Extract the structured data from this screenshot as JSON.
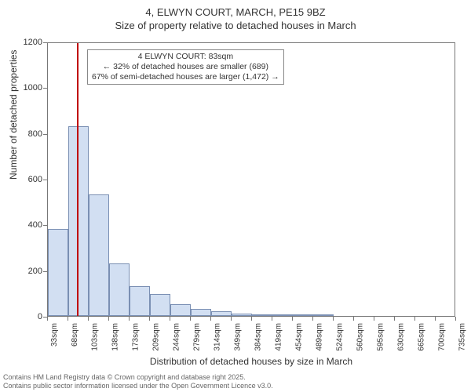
{
  "title_main": "4, ELWYN COURT, MARCH, PE15 9BZ",
  "title_sub": "Size of property relative to detached houses in March",
  "y_label": "Number of detached properties",
  "x_label": "Distribution of detached houses by size in March",
  "chart": {
    "type": "histogram",
    "background_color": "#ffffff",
    "bar_fill": "rgba(173,197,231,0.55)",
    "bar_border": "#7a8fb3",
    "border_color": "#777777",
    "marker_color": "#c00000",
    "ylim": [
      0,
      1200
    ],
    "ytick_step": 200,
    "y_ticks": [
      0,
      200,
      400,
      600,
      800,
      1000,
      1200
    ],
    "x_labels": [
      "33sqm",
      "68sqm",
      "103sqm",
      "138sqm",
      "173sqm",
      "209sqm",
      "244sqm",
      "279sqm",
      "314sqm",
      "349sqm",
      "384sqm",
      "419sqm",
      "454sqm",
      "489sqm",
      "524sqm",
      "560sqm",
      "595sqm",
      "630sqm",
      "665sqm",
      "700sqm",
      "735sqm"
    ],
    "bars": [
      380,
      830,
      530,
      230,
      130,
      95,
      50,
      30,
      20,
      12,
      8,
      5,
      3,
      2,
      0,
      0,
      0,
      0,
      0,
      0
    ],
    "marker_value_sqm": 83,
    "label_fontsize": 12,
    "tick_fontsize": 11
  },
  "annotation": {
    "line1": "4 ELWYN COURT: 83sqm",
    "line2": "← 32% of detached houses are smaller (689)",
    "line3": "67% of semi-detached houses are larger (1,472) →"
  },
  "footer": {
    "line1": "Contains HM Land Registry data © Crown copyright and database right 2025.",
    "line2": "Contains public sector information licensed under the Open Government Licence v3.0."
  }
}
